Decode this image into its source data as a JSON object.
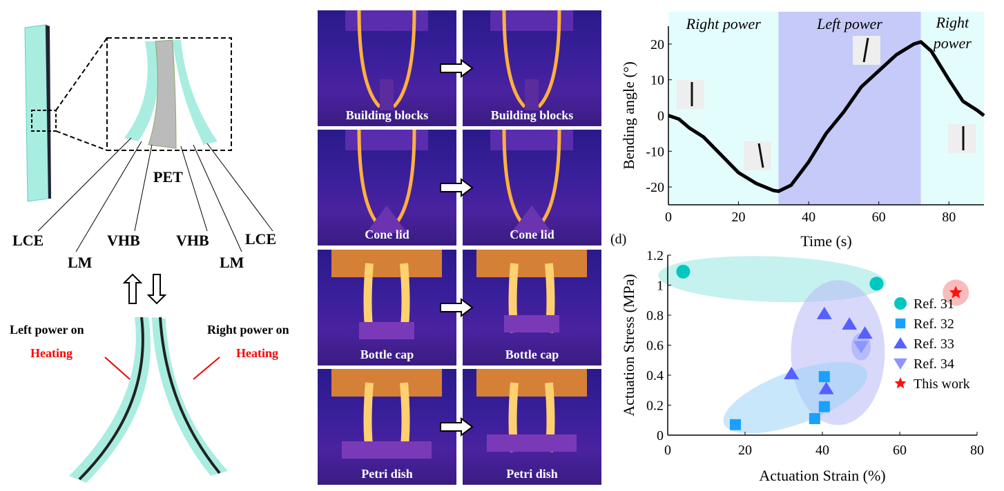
{
  "left_panel": {
    "layer_labels": [
      "PET",
      "LCE",
      "LM",
      "VHB",
      "VHB",
      "LM",
      "LCE"
    ],
    "left_power": "Left power on",
    "right_power": "Right power on",
    "heating": "Heating",
    "heating_color": "#ff0000"
  },
  "thermal_panel": {
    "rows": [
      {
        "label": "Building blocks",
        "object": "blocks"
      },
      {
        "label": "Cone lid",
        "object": "cone"
      },
      {
        "label": "Bottle cap",
        "object": "cap"
      },
      {
        "label": "Petri dish",
        "object": "dish"
      }
    ]
  },
  "panel_d_label": "(d)",
  "chart_data": [
    {
      "type": "line",
      "xlabel": "Time (s)",
      "ylabel": "Bending angle (°)",
      "xlim": [
        0,
        90
      ],
      "ylim": [
        -25,
        25
      ],
      "xticks": [
        0,
        20,
        40,
        60,
        80
      ],
      "yticks": [
        -20,
        -10,
        0,
        10,
        20
      ],
      "regions": [
        {
          "label": "Right power",
          "from": 0,
          "to": 31.4,
          "color": "#e3fdfc"
        },
        {
          "label": "Left power",
          "from": 31.4,
          "to": 72,
          "color": "#c5caf9"
        },
        {
          "label": "Right power",
          "from": 72,
          "to": 90,
          "color": "#e3fdfc"
        }
      ],
      "series": [
        {
          "color": "#000000",
          "x": [
            0,
            3,
            6,
            10,
            15,
            20,
            25,
            30,
            31.4,
            35,
            40,
            45,
            50,
            55,
            60,
            65,
            70,
            72,
            75,
            80,
            84,
            88,
            90
          ],
          "y": [
            0,
            -1,
            -3.5,
            -6,
            -11,
            -16,
            -19,
            -21,
            -21.2,
            -19.5,
            -13,
            -5,
            1,
            8,
            12.5,
            17,
            20,
            20.6,
            18,
            10,
            4,
            1.5,
            0
          ]
        }
      ]
    },
    {
      "type": "scatter",
      "xlabel": "Actuation Strain (%)",
      "ylabel": "Actuation Stress (MPa)",
      "xlim": [
        0,
        80
      ],
      "ylim": [
        0,
        1.2
      ],
      "xticks": [
        0,
        20,
        40,
        60,
        80
      ],
      "yticks": [
        0,
        0.2,
        0.4,
        0.6,
        0.8,
        1,
        1.2
      ],
      "legend": "right",
      "series": [
        {
          "name": "Ref. 31",
          "marker": "circle",
          "color": "#00c8c0",
          "x": [
            4,
            54
          ],
          "y": [
            1.09,
            1.01
          ]
        },
        {
          "name": "Ref. 32",
          "marker": "square",
          "color": "#1aa0ff",
          "x": [
            17.5,
            38,
            40.5,
            40.5
          ],
          "y": [
            0.07,
            0.11,
            0.19,
            0.39
          ]
        },
        {
          "name": "Ref. 33",
          "marker": "triangle-up",
          "color": "#5560ff",
          "x": [
            32,
            40.5,
            47,
            51,
            41
          ],
          "y": [
            0.41,
            0.81,
            0.74,
            0.68,
            0.31
          ]
        },
        {
          "name": "Ref. 34",
          "marker": "triangle-down",
          "color": "#8a95ff",
          "x": [
            50
          ],
          "y": [
            0.59
          ]
        },
        {
          "name": "This work",
          "marker": "star",
          "color": "#ff1010",
          "x": [
            74.5
          ],
          "y": [
            0.95
          ]
        }
      ]
    }
  ]
}
